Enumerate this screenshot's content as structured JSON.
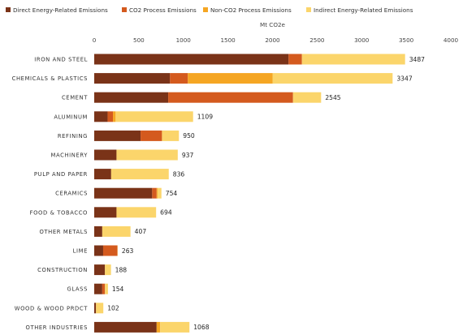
{
  "chart_data": {
    "type": "bar",
    "orientation": "horizontal",
    "stacked": true,
    "title": "",
    "xlabel": "Mt CO2e",
    "ylabel": "",
    "xlim": [
      0,
      4000
    ],
    "x_ticks": [
      "0",
      "500",
      "1000",
      "1500",
      "2000",
      "2500",
      "3000",
      "3500",
      "4000"
    ],
    "x_axis_position": "top",
    "legend_position": "top",
    "grid": false,
    "categories": [
      "IRON AND STEEL",
      "CHEMICALS & PLASTICS",
      "CEMENT",
      "ALUMINUM",
      "REFINING",
      "MACHINERY",
      "PULP AND PAPER",
      "CERAMICS",
      "FOOD & TOBACCO",
      "OTHER METALS",
      "LIME",
      "CONSTRUCTION",
      "GLASS",
      "WOOD & WOOD PRDCT",
      "OTHER INDUSTRIES"
    ],
    "series": [
      {
        "name": "Direct Energy-Related Emissions",
        "color": "#7a3318",
        "values": [
          2180,
          850,
          830,
          150,
          520,
          250,
          190,
          650,
          250,
          90,
          100,
          120,
          90,
          20,
          700
        ]
      },
      {
        "name": "CO2 Process Emissions",
        "color": "#d45a1e",
        "values": [
          150,
          200,
          1400,
          60,
          240,
          0,
          0,
          50,
          0,
          0,
          160,
          0,
          30,
          0,
          0
        ]
      },
      {
        "name": "Non-CO2 Process Emissions",
        "color": "#f5a623",
        "values": [
          0,
          950,
          0,
          30,
          0,
          0,
          0,
          10,
          0,
          0,
          0,
          0,
          0,
          0,
          40
        ]
      },
      {
        "name": "Indirect Energy-Related Emissions",
        "color": "#fbd56b",
        "values": [
          1157,
          1347,
          315,
          869,
          190,
          687,
          646,
          44,
          444,
          317,
          3,
          68,
          34,
          82,
          328
        ]
      }
    ],
    "totals": [
      "3487",
      "3347",
      "2545",
      "1109",
      "950",
      "937",
      "836",
      "754",
      "694",
      "407",
      "263",
      "188",
      "154",
      "102",
      "1068"
    ]
  }
}
